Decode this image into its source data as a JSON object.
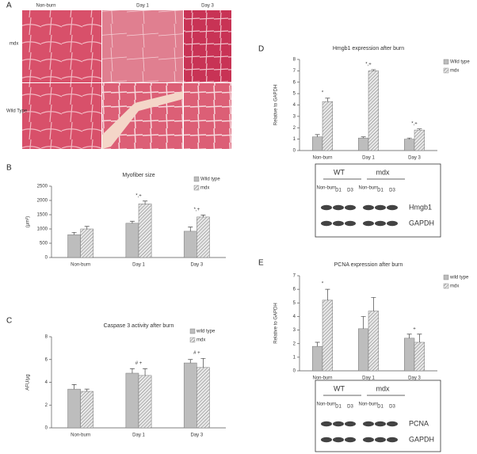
{
  "figure": {
    "panel_a": {
      "label": "A",
      "columns": [
        "Non-burn",
        "Day 1",
        "Day 3"
      ],
      "rows": [
        "mdx",
        "Wild Type"
      ]
    },
    "blots": [
      {
        "groups": [
          "WT",
          "mdx"
        ],
        "lanes": [
          "Non-burn",
          "D1",
          "D3",
          "Non-burn",
          "D1",
          "D3"
        ],
        "bands": [
          "Hmgb1",
          "GAPDH"
        ]
      },
      {
        "groups": [
          "WT",
          "mdx"
        ],
        "lanes": [
          "Non-burn",
          "D1",
          "D3",
          "Non-burn",
          "D1",
          "D3"
        ],
        "bands": [
          "PCNA",
          "GAPDH"
        ]
      }
    ]
  },
  "chart_data": [
    {
      "type": "bar",
      "panel_label": "B",
      "title": "Myofiber size",
      "y_label": "(µm²)",
      "categories": [
        "Non-burn",
        "Day 1",
        "Day 3"
      ],
      "series": [
        {
          "name": "Wild type",
          "color": "#bdbdbd",
          "values": [
            800,
            1200,
            920
          ],
          "errors": [
            80,
            70,
            150
          ]
        },
        {
          "name": "mdx",
          "color": "#e0e0e0",
          "hatch": true,
          "values": [
            1000,
            1880,
            1420
          ],
          "errors": [
            90,
            100,
            70
          ]
        }
      ],
      "annotations": [
        {
          "text": "*,+",
          "category": 1
        },
        {
          "text": "*,+",
          "category": 2
        }
      ],
      "ylim": [
        0,
        2500
      ],
      "yticks": [
        0,
        500,
        1000,
        1500,
        2000,
        2500
      ]
    },
    {
      "type": "bar",
      "panel_label": "C",
      "title": "Caspase 3 activity after burn",
      "y_label": "AFU/µg",
      "categories": [
        "Non-burn",
        "Day 1",
        "Day 3"
      ],
      "series": [
        {
          "name": "wild type",
          "color": "#bdbdbd",
          "values": [
            3.4,
            4.8,
            5.7
          ],
          "errors": [
            0.4,
            0.4,
            0.3
          ]
        },
        {
          "name": "mdx",
          "color": "#e0e0e0",
          "hatch": true,
          "values": [
            3.2,
            4.6,
            5.3
          ],
          "errors": [
            0.2,
            0.6,
            0.8
          ]
        }
      ],
      "annotations": [
        {
          "text": "# +",
          "category": 1
        },
        {
          "text": "# +",
          "category": 2
        }
      ],
      "ylim": [
        0,
        8
      ],
      "yticks": [
        0,
        2,
        4,
        6,
        8
      ]
    },
    {
      "type": "bar",
      "panel_label": "D",
      "title": "Hmgb1 expression after burn",
      "y_label": "Relative to GAPDH",
      "categories": [
        "Non-burn",
        "Day 1",
        "Day 3"
      ],
      "series": [
        {
          "name": "Wild type",
          "color": "#bdbdbd",
          "values": [
            1.2,
            1.1,
            1.0
          ],
          "errors": [
            0.2,
            0.1,
            0.1
          ]
        },
        {
          "name": "mdx",
          "color": "#e0e0e0",
          "hatch": true,
          "values": [
            4.3,
            7.0,
            1.8
          ],
          "errors": [
            0.3,
            0.1,
            0.1
          ]
        }
      ],
      "annotations": [
        {
          "text": "*",
          "category": 0
        },
        {
          "text": "*,+",
          "category": 1
        },
        {
          "text": "*,+",
          "category": 2
        }
      ],
      "ylim": [
        0,
        8
      ],
      "yticks": [
        0,
        1,
        2,
        3,
        4,
        5,
        6,
        7,
        8
      ]
    },
    {
      "type": "bar",
      "panel_label": "E",
      "title": "PCNA expression after burn",
      "y_label": "Relative to GAPDH",
      "categories": [
        "Non-burn",
        "Day 1",
        "Day 3"
      ],
      "series": [
        {
          "name": "wild type",
          "color": "#bdbdbd",
          "values": [
            1.8,
            3.1,
            2.4
          ],
          "errors": [
            0.3,
            0.9,
            0.3
          ]
        },
        {
          "name": "mdx",
          "color": "#e0e0e0",
          "hatch": true,
          "values": [
            5.2,
            4.4,
            2.1
          ],
          "errors": [
            0.8,
            1.0,
            0.6
          ]
        }
      ],
      "annotations": [
        {
          "text": "*",
          "category": 0
        },
        {
          "text": "+",
          "category": 2
        }
      ],
      "ylim": [
        0,
        7
      ],
      "yticks": [
        0,
        1,
        2,
        3,
        4,
        5,
        6,
        7
      ]
    }
  ]
}
